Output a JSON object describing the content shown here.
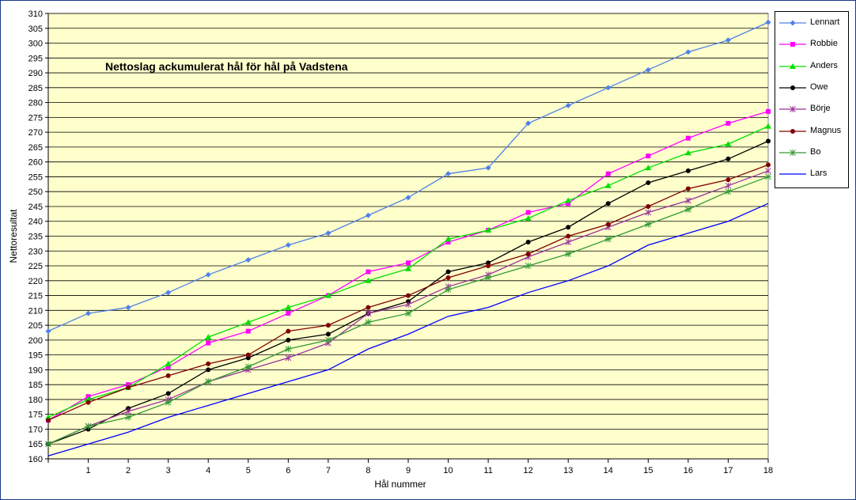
{
  "chart_data": {
    "type": "line",
    "title": "Nettoslag ackumulerat hål för hål på Vadstena",
    "xlabel": "Hål nummer",
    "ylabel": "Nettoresultat",
    "x": [
      0,
      1,
      2,
      3,
      4,
      5,
      6,
      7,
      8,
      9,
      10,
      11,
      12,
      13,
      14,
      15,
      16,
      17,
      18
    ],
    "x_tick_labels": [
      "1",
      "2",
      "3",
      "4",
      "5",
      "6",
      "7",
      "8",
      "9",
      "10",
      "11",
      "12",
      "13",
      "14",
      "15",
      "16",
      "17",
      "18"
    ],
    "xlim": [
      0,
      18
    ],
    "ylim": [
      160,
      310
    ],
    "ytick_step": 5,
    "grid": "horizontal",
    "legend": "right",
    "plot_background": "#FFFFCC",
    "series": [
      {
        "name": "Lennart",
        "color": "#4F81E8",
        "marker": "diamond",
        "values": [
          203,
          209,
          211,
          216,
          222,
          227,
          232,
          236,
          242,
          248,
          256,
          258,
          273,
          279,
          285,
          291,
          297,
          301,
          307
        ]
      },
      {
        "name": "Robbie",
        "color": "#FF00FF",
        "marker": "square",
        "values": [
          173,
          181,
          185,
          191,
          199,
          203,
          209,
          215,
          223,
          226,
          233,
          237,
          243,
          246,
          256,
          262,
          268,
          273,
          277
        ]
      },
      {
        "name": "Anders",
        "color": "#00E000",
        "marker": "triangle",
        "values": [
          174,
          180,
          184,
          192,
          201,
          206,
          211,
          215,
          220,
          224,
          234,
          237,
          241,
          247,
          252,
          258,
          263,
          266,
          272
        ]
      },
      {
        "name": "Owe",
        "color": "#000000",
        "marker": "circle",
        "values": [
          165,
          170,
          177,
          182,
          190,
          194,
          200,
          202,
          209,
          213,
          223,
          226,
          233,
          238,
          246,
          253,
          257,
          261,
          267
        ]
      },
      {
        "name": "Börje",
        "color": "#993399",
        "marker": "star",
        "values": [
          165,
          171,
          176,
          180,
          186,
          190,
          194,
          199,
          209,
          212,
          218,
          222,
          228,
          233,
          238,
          243,
          247,
          252,
          257
        ]
      },
      {
        "name": "Magnus",
        "color": "#800000",
        "marker": "circle",
        "values": [
          173,
          179,
          184,
          188,
          192,
          195,
          203,
          205,
          211,
          215,
          221,
          225,
          229,
          235,
          239,
          245,
          251,
          254,
          259
        ]
      },
      {
        "name": "Bo",
        "color": "#339933",
        "marker": "asterisk",
        "values": [
          165,
          171,
          174,
          179,
          186,
          191,
          197,
          200,
          206,
          209,
          217,
          221,
          225,
          229,
          234,
          239,
          244,
          250,
          255
        ]
      },
      {
        "name": "Lars",
        "color": "#0000FF",
        "marker": "none",
        "values": [
          161,
          165,
          169,
          174,
          178,
          182,
          186,
          190,
          197,
          202,
          208,
          211,
          216,
          220,
          225,
          232,
          236,
          240,
          246
        ]
      }
    ]
  }
}
